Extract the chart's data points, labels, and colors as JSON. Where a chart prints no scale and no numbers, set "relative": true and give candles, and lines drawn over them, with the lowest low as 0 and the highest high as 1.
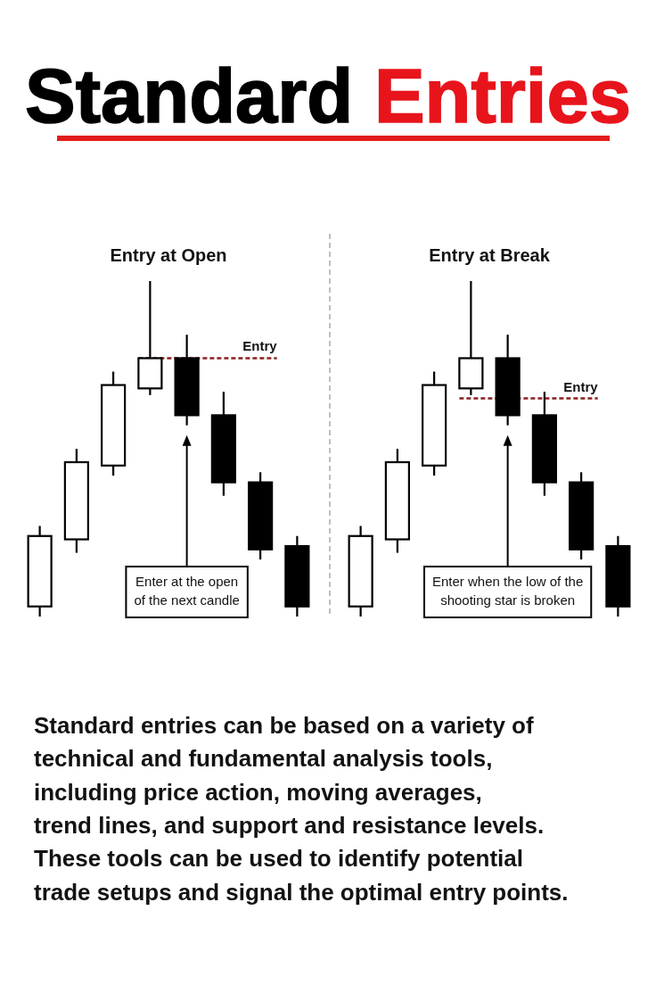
{
  "chart_data": [
    {
      "type": "other",
      "title": "Standard Entries"
    },
    {
      "type": "candlestick",
      "title": "Entry at Open",
      "categories": [
        null,
        null,
        null,
        null,
        null,
        null,
        null,
        null
      ],
      "ohlc": [
        [
          0.03,
          0.27,
          0,
          0.24
        ],
        [
          0.23,
          0.5,
          0.19,
          0.46
        ],
        [
          0.45,
          0.73,
          0.42,
          0.69
        ],
        [
          0.68,
          1,
          0.66,
          0.77
        ],
        [
          0.77,
          0.84,
          0.57,
          0.6
        ],
        [
          0.6,
          0.67,
          0.36,
          0.4
        ],
        [
          0.4,
          0.43,
          0.17,
          0.2
        ],
        [
          0.21,
          0.24,
          0,
          0.03
        ]
      ],
      "colors": [
        "#ffffff",
        "#ffffff",
        "#ffffff",
        "#ffffff",
        "#000000",
        "#000000",
        "#000000",
        "#000000"
      ],
      "relative": true,
      "tick_labels": false,
      "ref_lines": [
        {
          "axis": "y",
          "value": 0.77,
          "label": "Entry",
          "color": "#8b2020",
          "line_style": "dashed"
        }
      ],
      "annotations": [
        "Enter at the open\nof the next candle"
      ]
    },
    {
      "type": "candlestick",
      "title": "Entry at Break",
      "categories": [
        null,
        null,
        null,
        null,
        null,
        null,
        null,
        null
      ],
      "ohlc": [
        [
          0.03,
          0.27,
          0,
          0.24
        ],
        [
          0.23,
          0.5,
          0.19,
          0.46
        ],
        [
          0.45,
          0.73,
          0.42,
          0.69
        ],
        [
          0.68,
          1,
          0.66,
          0.77
        ],
        [
          0.77,
          0.84,
          0.57,
          0.6
        ],
        [
          0.6,
          0.67,
          0.36,
          0.4
        ],
        [
          0.4,
          0.43,
          0.17,
          0.2
        ],
        [
          0.21,
          0.24,
          0,
          0.03
        ]
      ],
      "colors": [
        "#ffffff",
        "#ffffff",
        "#ffffff",
        "#ffffff",
        "#000000",
        "#000000",
        "#000000",
        "#000000"
      ],
      "relative": true,
      "tick_labels": false,
      "ref_lines": [
        {
          "axis": "y",
          "value": 0.65,
          "label": "Entry",
          "color": "#8b2020",
          "line_style": "dashed"
        }
      ],
      "annotations": [
        "Enter when the low of the\nshooting star is broken"
      ]
    },
    {
      "type": "other",
      "annotations": [
        "Standard entries can be based on a variety of\ntechnical and fundamental analysis tools,\nincluding price action, moving averages,\ntrend lines, and support and resistance levels.\nThese tools can be used to identify potential\ntrade setups and signal the optimal entry points."
      ]
    }
  ]
}
